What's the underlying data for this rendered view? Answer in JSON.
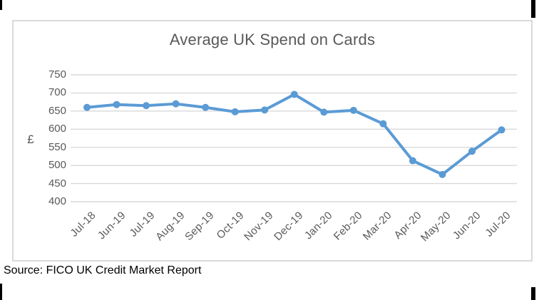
{
  "page": {
    "source_note": "Source: FICO UK Credit Market Report"
  },
  "chart_data": {
    "type": "line",
    "title": "Average UK Spend on Cards",
    "xlabel": "",
    "ylabel": "£",
    "categories": [
      "Jul-18",
      "Jun-19",
      "Jul-19",
      "Aug-19",
      "Sep-19",
      "Oct-19",
      "Nov-19",
      "Dec-19",
      "Jan-20",
      "Feb-20",
      "Mar-20",
      "Apr-20",
      "May-20",
      "Jun-20",
      "Jul-20"
    ],
    "values": [
      660,
      668,
      665,
      670,
      660,
      648,
      653,
      696,
      647,
      652,
      615,
      513,
      475,
      539,
      598
    ],
    "ylim": [
      400,
      750
    ],
    "y_tick_step": 50,
    "y_ticks": [
      400,
      450,
      500,
      550,
      600,
      650,
      700,
      750
    ],
    "grid": true,
    "legend": "none",
    "line_color": "#5B9BD5",
    "marker": "circle",
    "axis_text_color": "#595959",
    "gridline_color": "#D9D9D9",
    "title_color": "#595959"
  }
}
